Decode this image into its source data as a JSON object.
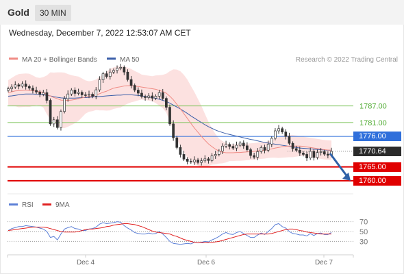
{
  "header": {
    "instrument": "Gold",
    "timeframe": "30 MIN"
  },
  "timestamp": "Wednesday, December 7, 2022 12:53:07 AM CET",
  "legend": [
    {
      "label": "MA 20 + Bollinger Bands",
      "color": "#f08b84"
    },
    {
      "label": "MA 50",
      "color": "#3a5ea8"
    }
  ],
  "copyright": "Research © 2022 Trading Central",
  "rsi_legend": [
    {
      "label": "RSI",
      "color": "#5b7fd6"
    },
    {
      "label": "9MA",
      "color": "#e02020"
    }
  ],
  "chart_data": {
    "type": "candlestick",
    "x_ticks": [
      "Dec 4",
      "Dec 6",
      "Dec 7"
    ],
    "y_range": [
      1757,
      1800
    ],
    "price_levels": [
      {
        "label": "1787.00",
        "value": 1787.0,
        "kind": "resistance",
        "color": "#7cc35a"
      },
      {
        "label": "1781.00",
        "value": 1781.0,
        "kind": "resistance",
        "color": "#7cc35a"
      },
      {
        "label": "1776.00",
        "value": 1776.0,
        "kind": "pivot",
        "color": "#2f6fdb"
      },
      {
        "label": "1770.64",
        "value": 1770.64,
        "kind": "last",
        "color": "#2b2b2b"
      },
      {
        "label": "1765.00",
        "value": 1765.0,
        "kind": "support",
        "color": "#e00000"
      },
      {
        "label": "1760.00",
        "value": 1760.0,
        "kind": "support",
        "color": "#e00000"
      }
    ],
    "close_series": [
      1793.2,
      1793.8,
      1794.6,
      1794.1,
      1794.9,
      1794.0,
      1793.4,
      1792.6,
      1792.0,
      1791.2,
      1791.8,
      1789.0,
      1780.5,
      1782.0,
      1779.2,
      1785.0,
      1789.6,
      1791.3,
      1792.7,
      1791.5,
      1791.9,
      1791.0,
      1790.9,
      1791.2,
      1790.5,
      1792.8,
      1796.4,
      1798.6,
      1797.6,
      1799.2,
      1799.8,
      1800.6,
      1800.9,
      1799.2,
      1796.5,
      1794.4,
      1792.7,
      1791.6,
      1790.4,
      1790.0,
      1790.6,
      1789.8,
      1790.5,
      1791.8,
      1789.7,
      1786.5,
      1780.5,
      1775.5,
      1772.0,
      1769.5,
      1767.8,
      1767.0,
      1766.8,
      1767.5,
      1766.6,
      1767.2,
      1767.9,
      1767.3,
      1769.0,
      1769.5,
      1770.7,
      1772.5,
      1773.1,
      1772.4,
      1771.8,
      1772.8,
      1773.6,
      1772.6,
      1771.2,
      1769.1,
      1768.5,
      1770.5,
      1772.0,
      1771.0,
      1773.2,
      1775.3,
      1778.0,
      1778.8,
      1777.6,
      1776.0,
      1773.5,
      1771.6,
      1771.0,
      1770.0,
      1769.5,
      1768.2,
      1770.6,
      1768.4,
      1770.2,
      1770.5,
      1769.6,
      1769.2,
      1770.6
    ],
    "ma20_series": [
      1791.8,
      1792.1,
      1792.4,
      1792.5,
      1792.6,
      1792.7,
      1792.6,
      1792.5,
      1792.3,
      1792.1,
      1791.9,
      1791.0,
      1790.6,
      1790.0,
      1789.6,
      1789.1,
      1789.0,
      1789.0,
      1789.1,
      1789.3,
      1789.6,
      1789.9,
      1790.2,
      1790.4,
      1790.6,
      1791.0,
      1791.4,
      1791.9,
      1792.3,
      1792.9,
      1793.4,
      1793.7,
      1793.9,
      1794.2,
      1794.3,
      1794.3,
      1794.1,
      1794.0,
      1793.8,
      1793.6,
      1793.4,
      1793.2,
      1793.0,
      1792.6,
      1792.2,
      1791.6,
      1790.5,
      1789.2,
      1787.6,
      1786.0,
      1784.2,
      1782.5,
      1780.7,
      1779.0,
      1777.5,
      1776.0,
      1774.6,
      1773.3,
      1772.3,
      1771.4,
      1770.7,
      1770.3,
      1770.1,
      1770.1,
      1770.1,
      1770.2,
      1770.2,
      1770.3,
      1770.4,
      1770.5,
      1770.6,
      1770.8,
      1770.9,
      1771.0,
      1771.2,
      1771.5,
      1771.8,
      1772.0,
      1772.3,
      1772.4,
      1772.5,
      1772.5,
      1772.5,
      1772.5,
      1772.4,
      1772.2,
      1772.0,
      1771.8,
      1771.6,
      1771.4,
      1771.2,
      1771.1,
      1771.0
    ],
    "bb_width_series": [
      4.5,
      5.0,
      5.5,
      6.0,
      6.0,
      6.0,
      6.0,
      5.5,
      5.0,
      5.0,
      5.5,
      7.0,
      8.5,
      9.0,
      9.5,
      10.0,
      10.0,
      9.5,
      9.0,
      8.5,
      8.0,
      7.0,
      6.0,
      5.5,
      5.5,
      5.5,
      6.0,
      6.5,
      7.0,
      7.5,
      7.5,
      7.5,
      7.5,
      7.0,
      6.5,
      6.0,
      5.5,
      5.0,
      4.5,
      4.5,
      4.5,
      4.5,
      5.0,
      5.5,
      6.0,
      7.0,
      9.0,
      11.0,
      12.5,
      13.5,
      14.0,
      14.0,
      13.5,
      13.0,
      12.0,
      11.0,
      9.5,
      8.0,
      6.5,
      5.5,
      4.5,
      4.0,
      3.5,
      3.0,
      3.0,
      3.0,
      3.0,
      3.0,
      3.0,
      3.0,
      3.0,
      3.0,
      3.0,
      3.0,
      3.0,
      3.2,
      3.5,
      3.8,
      4.0,
      4.0,
      4.0,
      4.0,
      3.8,
      3.6,
      3.5,
      3.5,
      3.5,
      3.5,
      3.5,
      3.5,
      3.5,
      3.5,
      3.5
    ],
    "ma50_series": [
      1790.5,
      1790.6,
      1790.8,
      1791.0,
      1791.2,
      1791.3,
      1791.3,
      1791.3,
      1791.2,
      1791.1,
      1791.0,
      1790.8,
      1790.6,
      1790.3,
      1790.1,
      1789.9,
      1789.8,
      1789.8,
      1789.8,
      1789.8,
      1789.9,
      1790.0,
      1790.0,
      1790.1,
      1790.2,
      1790.3,
      1790.4,
      1790.5,
      1790.6,
      1790.7,
      1790.8,
      1790.9,
      1790.9,
      1791.0,
      1791.0,
      1791.0,
      1790.9,
      1790.8,
      1790.6,
      1790.4,
      1790.2,
      1790.0,
      1789.7,
      1789.4,
      1789.0,
      1788.6,
      1788.0,
      1787.3,
      1786.6,
      1785.9,
      1785.1,
      1784.3,
      1783.4,
      1782.6,
      1781.8,
      1781.0,
      1780.2,
      1779.5,
      1778.9,
      1778.3,
      1777.8,
      1777.4,
      1777.0,
      1776.7,
      1776.4,
      1776.1,
      1775.8,
      1775.5,
      1775.2,
      1774.9,
      1774.7,
      1774.4,
      1774.1,
      1773.8,
      1773.6,
      1773.4,
      1773.2,
      1773.0,
      1772.8,
      1772.6,
      1772.4,
      1772.2,
      1772.0,
      1771.8,
      1771.7,
      1771.6,
      1771.5,
      1771.4,
      1771.3,
      1771.2,
      1771.1,
      1771.0,
      1771.0
    ],
    "forecast_arrow": {
      "from": 1770.6,
      "to": 1760.0,
      "direction": "down"
    },
    "rsi": {
      "levels": [
        70,
        50,
        30
      ],
      "rsi_series": [
        52,
        56,
        58,
        60,
        60,
        62,
        61,
        60,
        59,
        57,
        55,
        50,
        38,
        40,
        33,
        45,
        55,
        58,
        60,
        56,
        55,
        52,
        52,
        55,
        56,
        59,
        65,
        68,
        66,
        67,
        68,
        70,
        69,
        62,
        57,
        53,
        48,
        46,
        45,
        45,
        47,
        45,
        46,
        50,
        45,
        38,
        30,
        26,
        25,
        24,
        25,
        26,
        25,
        28,
        27,
        28,
        30,
        29,
        33,
        36,
        40,
        45,
        48,
        45,
        44,
        48,
        50,
        46,
        42,
        38,
        38,
        43,
        47,
        44,
        50,
        56,
        64,
        66,
        60,
        57,
        50,
        46,
        45,
        43,
        43,
        41,
        46,
        42,
        46,
        47,
        44,
        44,
        48
      ],
      "ma9_series": [
        52,
        53,
        54,
        55,
        56,
        57,
        58,
        59,
        59,
        59,
        59,
        58,
        56,
        54,
        52,
        50,
        49,
        49,
        49,
        49,
        50,
        52,
        54,
        55,
        55,
        56,
        57,
        58,
        60,
        61,
        63,
        64,
        65,
        66,
        66,
        65,
        64,
        62,
        60,
        57,
        54,
        51,
        49,
        48,
        47,
        46,
        45,
        42,
        40,
        37,
        34,
        32,
        30,
        28,
        27,
        27,
        27,
        27,
        28,
        29,
        30,
        32,
        34,
        36,
        38,
        40,
        42,
        44,
        45,
        45,
        45,
        45,
        45,
        45,
        45,
        46,
        48,
        50,
        52,
        54,
        55,
        55,
        54,
        52,
        51,
        49,
        48,
        47,
        46,
        45,
        45,
        45,
        45
      ]
    }
  }
}
